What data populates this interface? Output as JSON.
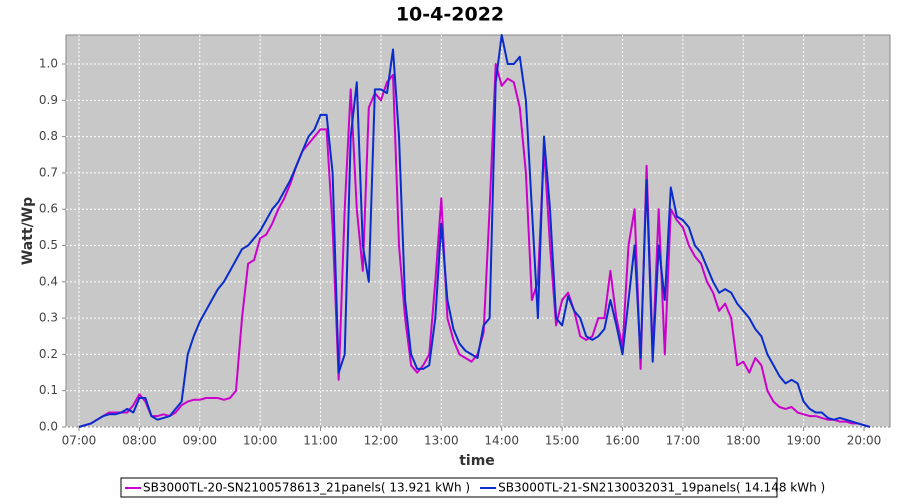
{
  "chart_data": {
    "type": "line",
    "title": "10-4-2022",
    "x_label": "time",
    "y_label": "Watt/Wp",
    "x": [
      7.0,
      7.1,
      7.2,
      7.3,
      7.4,
      7.5,
      7.6,
      7.7,
      7.8,
      7.9,
      8.0,
      8.1,
      8.2,
      8.3,
      8.4,
      8.5,
      8.6,
      8.7,
      8.8,
      8.9,
      9.0,
      9.1,
      9.2,
      9.3,
      9.4,
      9.5,
      9.6,
      9.7,
      9.8,
      9.9,
      10.0,
      10.1,
      10.2,
      10.3,
      10.4,
      10.5,
      10.6,
      10.7,
      10.8,
      10.9,
      11.0,
      11.1,
      11.2,
      11.3,
      11.4,
      11.5,
      11.6,
      11.7,
      11.8,
      11.9,
      12.0,
      12.1,
      12.2,
      12.3,
      12.4,
      12.5,
      12.6,
      12.7,
      12.8,
      12.9,
      13.0,
      13.1,
      13.2,
      13.3,
      13.4,
      13.5,
      13.6,
      13.7,
      13.8,
      13.9,
      14.0,
      14.1,
      14.2,
      14.3,
      14.4,
      14.5,
      14.6,
      14.7,
      14.8,
      14.9,
      15.0,
      15.1,
      15.2,
      15.3,
      15.4,
      15.5,
      15.6,
      15.7,
      15.8,
      15.9,
      16.0,
      16.1,
      16.2,
      16.3,
      16.4,
      16.5,
      16.6,
      16.7,
      16.8,
      16.9,
      17.0,
      17.1,
      17.2,
      17.3,
      17.4,
      17.5,
      17.6,
      17.7,
      17.8,
      17.9,
      18.0,
      18.1,
      18.2,
      18.3,
      18.4,
      18.5,
      18.6,
      18.7,
      18.8,
      18.9,
      19.0,
      19.1,
      19.2,
      19.3,
      19.4,
      19.5,
      19.6,
      19.7,
      19.8,
      19.9,
      20.0,
      20.1
    ],
    "series": [
      {
        "name": "SB3000TL-20-SN2100578613_21panels( 13.921 kWh )",
        "color": "#cc00cc",
        "values": [
          0.0,
          0.005,
          0.01,
          0.02,
          0.03,
          0.04,
          0.04,
          0.04,
          0.04,
          0.06,
          0.09,
          0.07,
          0.03,
          0.03,
          0.035,
          0.03,
          0.04,
          0.06,
          0.07,
          0.075,
          0.075,
          0.08,
          0.08,
          0.08,
          0.075,
          0.08,
          0.1,
          0.3,
          0.45,
          0.46,
          0.52,
          0.53,
          0.56,
          0.6,
          0.63,
          0.67,
          0.72,
          0.76,
          0.78,
          0.8,
          0.82,
          0.82,
          0.55,
          0.13,
          0.6,
          0.93,
          0.6,
          0.43,
          0.88,
          0.92,
          0.9,
          0.95,
          0.97,
          0.5,
          0.3,
          0.17,
          0.15,
          0.17,
          0.2,
          0.4,
          0.63,
          0.3,
          0.24,
          0.2,
          0.19,
          0.18,
          0.2,
          0.26,
          0.6,
          1.0,
          0.94,
          0.96,
          0.95,
          0.88,
          0.7,
          0.35,
          0.4,
          0.77,
          0.5,
          0.28,
          0.35,
          0.37,
          0.32,
          0.25,
          0.24,
          0.25,
          0.3,
          0.3,
          0.43,
          0.3,
          0.22,
          0.5,
          0.6,
          0.16,
          0.72,
          0.2,
          0.6,
          0.2,
          0.6,
          0.57,
          0.55,
          0.5,
          0.47,
          0.45,
          0.4,
          0.37,
          0.32,
          0.34,
          0.3,
          0.17,
          0.18,
          0.15,
          0.19,
          0.17,
          0.1,
          0.07,
          0.055,
          0.05,
          0.055,
          0.04,
          0.035,
          0.03,
          0.03,
          0.025,
          0.02,
          0.02,
          0.015,
          0.015,
          0.01,
          0.01,
          0.005,
          0.0
        ]
      },
      {
        "name": "SB3000TL-21-SN2130032031_19panels( 14.148 kWh )",
        "color": "#0a2ccc",
        "values": [
          0.0,
          0.005,
          0.01,
          0.02,
          0.03,
          0.035,
          0.035,
          0.04,
          0.05,
          0.04,
          0.08,
          0.08,
          0.03,
          0.02,
          0.025,
          0.03,
          0.05,
          0.07,
          0.2,
          0.25,
          0.29,
          0.32,
          0.35,
          0.38,
          0.4,
          0.43,
          0.46,
          0.49,
          0.5,
          0.52,
          0.54,
          0.57,
          0.6,
          0.62,
          0.65,
          0.68,
          0.72,
          0.76,
          0.8,
          0.82,
          0.86,
          0.86,
          0.7,
          0.15,
          0.2,
          0.8,
          0.95,
          0.5,
          0.4,
          0.93,
          0.93,
          0.92,
          1.04,
          0.8,
          0.35,
          0.2,
          0.16,
          0.16,
          0.17,
          0.3,
          0.56,
          0.35,
          0.27,
          0.23,
          0.21,
          0.2,
          0.19,
          0.28,
          0.3,
          0.95,
          1.08,
          1.0,
          1.0,
          1.02,
          0.9,
          0.6,
          0.3,
          0.8,
          0.6,
          0.3,
          0.28,
          0.36,
          0.32,
          0.3,
          0.25,
          0.24,
          0.25,
          0.27,
          0.35,
          0.28,
          0.2,
          0.35,
          0.5,
          0.19,
          0.68,
          0.18,
          0.5,
          0.35,
          0.66,
          0.58,
          0.57,
          0.55,
          0.5,
          0.48,
          0.44,
          0.4,
          0.37,
          0.38,
          0.37,
          0.34,
          0.32,
          0.3,
          0.27,
          0.25,
          0.2,
          0.17,
          0.14,
          0.12,
          0.13,
          0.12,
          0.07,
          0.05,
          0.04,
          0.04,
          0.025,
          0.02,
          0.025,
          0.02,
          0.015,
          0.01,
          0.005,
          0.0
        ]
      }
    ],
    "xlim": [
      6.785,
      20.43
    ],
    "xticks": [
      {
        "value": 7,
        "label": "07:00"
      },
      {
        "value": 8,
        "label": "08:00"
      },
      {
        "value": 9,
        "label": "09:00"
      },
      {
        "value": 10,
        "label": "10:00"
      },
      {
        "value": 11,
        "label": "11:00"
      },
      {
        "value": 12,
        "label": "12:00"
      },
      {
        "value": 13,
        "label": "13:00"
      },
      {
        "value": 14,
        "label": "14:00"
      },
      {
        "value": 15,
        "label": "15:00"
      },
      {
        "value": 16,
        "label": "16:00"
      },
      {
        "value": 17,
        "label": "17:00"
      },
      {
        "value": 18,
        "label": "18:00"
      },
      {
        "value": 19,
        "label": "19:00"
      },
      {
        "value": 20,
        "label": "20:00"
      }
    ],
    "ylim": [
      0,
      1.08
    ],
    "yticks": [
      {
        "value": 0,
        "label": "0.0"
      },
      0.1,
      0.2,
      0.3,
      0.4,
      0.5,
      0.6,
      0.7,
      0.8,
      0.9,
      {
        "value": 1,
        "label": "1.0"
      }
    ],
    "grid": true,
    "legend": "bottom"
  }
}
